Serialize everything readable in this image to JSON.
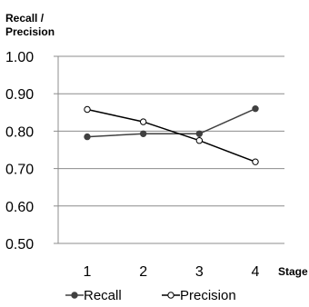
{
  "chart_data": {
    "type": "line",
    "title": "",
    "ylabel_lines": [
      "Recall /",
      "Precision"
    ],
    "xlabel": "Stage",
    "categories": [
      "1",
      "2",
      "3",
      "4"
    ],
    "ylim": [
      0.5,
      1.0
    ],
    "yticks": [
      "0.50",
      "0.60",
      "0.70",
      "0.80",
      "0.90",
      "1.00"
    ],
    "grid": "horizontal",
    "legend_position": "bottom",
    "series": [
      {
        "name": "Recall",
        "values": [
          0.785,
          0.793,
          0.793,
          0.86
        ],
        "marker": "filled",
        "color": "#404040"
      },
      {
        "name": "Precision",
        "values": [
          0.858,
          0.825,
          0.775,
          0.718
        ],
        "marker": "open",
        "color": "#000000"
      }
    ]
  }
}
